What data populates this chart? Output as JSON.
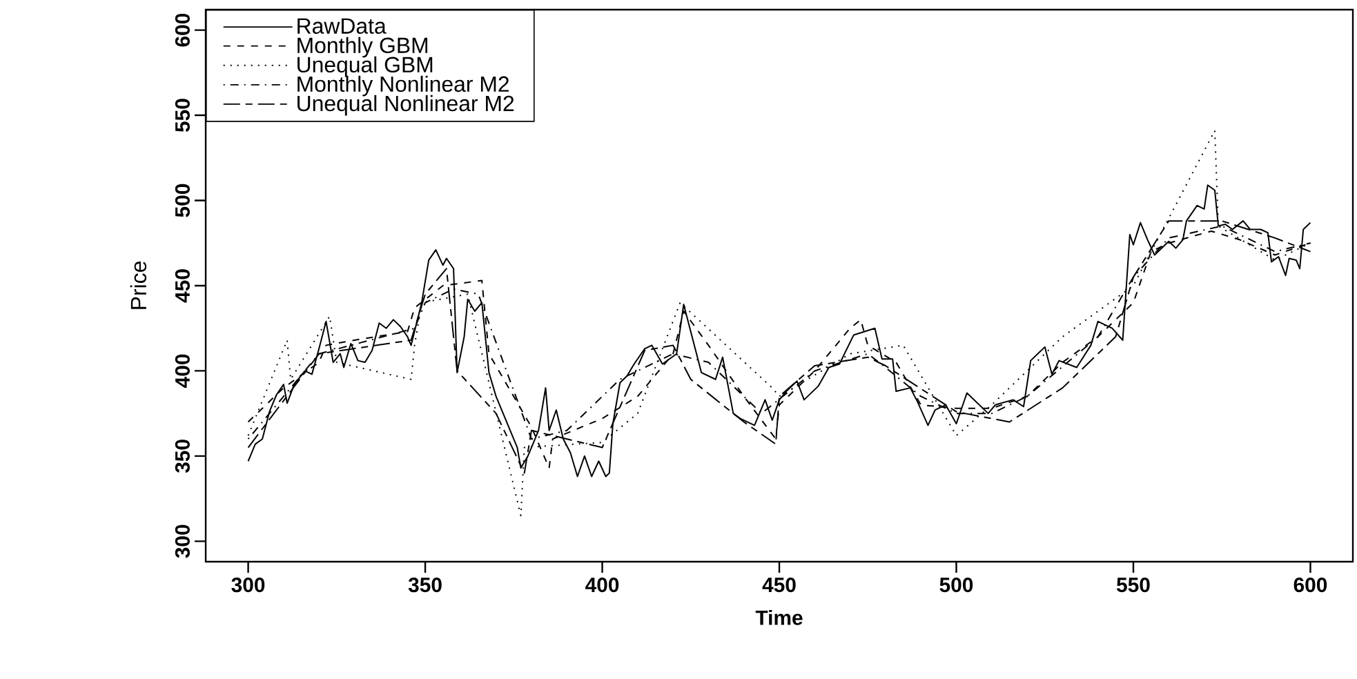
{
  "chart_data": {
    "type": "line",
    "xlabel": "Time",
    "ylabel": "Price",
    "xlim": [
      288,
      612
    ],
    "ylim": [
      288,
      612
    ],
    "xticks": [
      300,
      350,
      400,
      450,
      500,
      550,
      600
    ],
    "yticks": [
      300,
      350,
      400,
      450,
      500,
      550,
      600
    ],
    "legend": "top left",
    "series": [
      {
        "name": "RawData",
        "color": "#000000",
        "line_style": "solid",
        "x": [
          300,
          302,
          304,
          306,
          308,
          310,
          311,
          313,
          316,
          318,
          320,
          322,
          324,
          326,
          327,
          329,
          331,
          333,
          335,
          337,
          339,
          341,
          343,
          345,
          346,
          349,
          351,
          353,
          355,
          356,
          358,
          359,
          361,
          362,
          364,
          366,
          368,
          370,
          372,
          374,
          376,
          377,
          379,
          382,
          384,
          385,
          387,
          389,
          391,
          393,
          395,
          397,
          399,
          401,
          402,
          403,
          405,
          407,
          409,
          412,
          414,
          417,
          421,
          423,
          425,
          428,
          432,
          434,
          437,
          439,
          443,
          446,
          448,
          450,
          452,
          455,
          457,
          461,
          464,
          467,
          471,
          474,
          477,
          479,
          482,
          483,
          487,
          489,
          492,
          494,
          497,
          500,
          503,
          509,
          511,
          516,
          519,
          521,
          525,
          527,
          529,
          534,
          538,
          540,
          544,
          547,
          549,
          550,
          552,
          554,
          556,
          560,
          562,
          564,
          565,
          568,
          570,
          571,
          573,
          574,
          576,
          578,
          581,
          583,
          586,
          588,
          589,
          591,
          593,
          594,
          596,
          597,
          598,
          600
        ],
        "values": [
          347,
          357,
          360,
          376,
          386,
          392,
          381,
          392,
          400,
          398,
          413,
          429,
          405,
          410,
          402,
          416,
          406,
          405,
          412,
          428,
          425,
          430,
          426,
          420,
          415,
          440,
          465,
          471,
          462,
          466,
          460,
          399,
          420,
          442,
          435,
          440,
          399,
          385,
          375,
          365,
          355,
          343,
          350,
          365,
          390,
          365,
          377,
          360,
          352,
          338,
          350,
          338,
          347,
          338,
          340,
          369,
          393,
          397,
          404,
          413,
          415,
          404,
          410,
          439,
          423,
          399,
          395,
          408,
          375,
          372,
          368,
          383,
          371,
          383,
          388,
          394,
          383,
          391,
          402,
          404,
          421,
          423,
          425,
          407,
          407,
          388,
          390,
          382,
          368,
          377,
          380,
          369,
          387,
          375,
          380,
          383,
          379,
          406,
          414,
          398,
          406,
          402,
          415,
          429,
          425,
          418,
          480,
          474,
          487,
          477,
          468,
          476,
          472,
          477,
          488,
          497,
          495,
          509,
          506,
          485,
          486,
          483,
          488,
          483,
          483,
          481,
          464,
          467,
          456,
          466,
          465,
          460,
          483,
          487
        ]
      },
      {
        "name": "Monthly GBM",
        "color": "#000000",
        "line_style": "dashed",
        "x": [
          300,
          310,
          320,
          322,
          330,
          345,
          347,
          355,
          366,
          368,
          380,
          385,
          386,
          400,
          410,
          420,
          423,
          430,
          440,
          449,
          450,
          460,
          470,
          473,
          475,
          483,
          490,
          500,
          510,
          520,
          530,
          540,
          550,
          555,
          560,
          572,
          580,
          590,
          600
        ],
        "values": [
          370,
          390,
          405,
          415,
          418,
          423,
          437,
          450,
          453,
          410,
          367,
          343,
          360,
          372,
          385,
          410,
          435,
          415,
          385,
          360,
          380,
          400,
          425,
          430,
          415,
          405,
          380,
          378,
          378,
          385,
          405,
          420,
          440,
          470,
          475,
          482,
          477,
          468,
          475
        ]
      },
      {
        "name": "Unequal GBM",
        "color": "#000000",
        "line_style": "dotted",
        "x": [
          300,
          311,
          312,
          323,
          325,
          346,
          347,
          349,
          362,
          377,
          378,
          400,
          410,
          422,
          448,
          450,
          470,
          485,
          500,
          510,
          520,
          530,
          550,
          573,
          574,
          590,
          600
        ],
        "values": [
          362,
          418,
          395,
          432,
          405,
          395,
          415,
          440,
          445,
          315,
          355,
          358,
          375,
          440,
          390,
          385,
          410,
          415,
          362,
          380,
          400,
          420,
          450,
          541,
          485,
          465,
          475
        ]
      },
      {
        "name": "Monthly Nonlinear M2",
        "color": "#000000",
        "line_style": "dashdot",
        "x": [
          300,
          320,
          347,
          350,
          358,
          365,
          380,
          390,
          405,
          420,
          430,
          445,
          460,
          475,
          480,
          490,
          500,
          510,
          520,
          540,
          550,
          560,
          575,
          590,
          600
        ],
        "values": [
          360,
          410,
          425,
          440,
          448,
          445,
          360,
          365,
          395,
          410,
          405,
          375,
          400,
          410,
          402,
          385,
          375,
          375,
          385,
          420,
          455,
          478,
          485,
          470,
          475
        ]
      },
      {
        "name": "Unequal Nonlinear M2",
        "color": "#000000",
        "line_style": "longdash",
        "x": [
          300,
          320,
          346,
          350,
          356,
          359,
          370,
          378,
          380,
          400,
          412,
          420,
          425,
          440,
          449,
          450,
          460,
          475,
          480,
          500,
          515,
          530,
          545,
          550,
          560,
          575,
          590,
          600
        ],
        "values": [
          355,
          410,
          418,
          445,
          460,
          400,
          375,
          340,
          365,
          355,
          412,
          415,
          395,
          370,
          357,
          385,
          403,
          408,
          403,
          376,
          370,
          390,
          420,
          455,
          488,
          488,
          478,
          470
        ]
      }
    ]
  }
}
